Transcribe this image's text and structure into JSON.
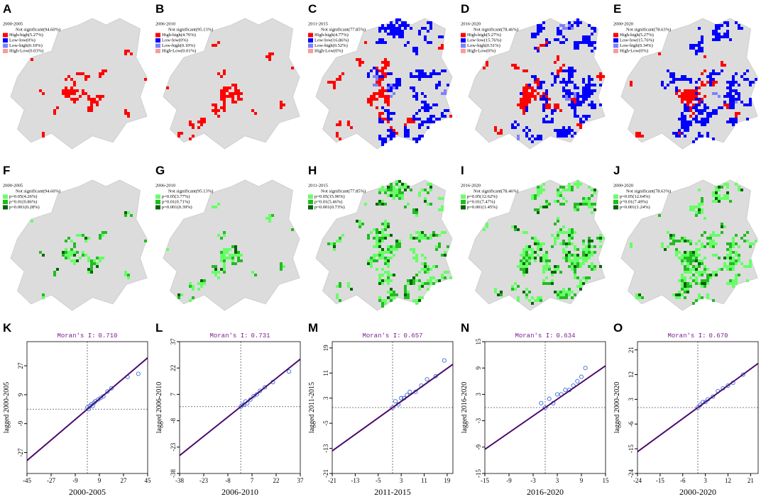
{
  "lisa_legend_colors": [
    "#ff0000",
    "#0000ff",
    "#8080ff",
    "#ff9999"
  ],
  "sig_legend_colors": [
    "#66ff66",
    "#22bb22",
    "#006400"
  ],
  "map_panels": [
    {
      "letter": "A",
      "period": "2000-2005",
      "legend": [
        "Not significant(94.60%)",
        "High-high(5.27%)",
        "Low-low(0%)",
        "Low-high(0.10%)",
        "High-Low(0.03%)"
      ]
    },
    {
      "letter": "B",
      "period": "2006-2010",
      "legend": [
        "Not significant(95.13%)",
        "High-high(4.76%)",
        "Low-low(0%)",
        "Low-high(0.10%)",
        "High-Low(0.01%)"
      ]
    },
    {
      "letter": "C",
      "period": "2011-2015",
      "legend": [
        "Not significant(77.85%)",
        "High-high(4.77%)",
        "Low-low(16.86%)",
        "Low-high(0.52%)",
        "High-Low(0%)"
      ]
    },
    {
      "letter": "D",
      "period": "2016-2020",
      "legend": [
        "Not significant(78.46%)",
        "High-high(5.27%)",
        "Low-low(15.76%)",
        "Low-high(0.51%)",
        "High-Low(0%)"
      ]
    },
    {
      "letter": "E",
      "period": "2000-2020",
      "legend": [
        "Not significant(78.63%)",
        "High-high(5.27%)",
        "Low-low(15.76%)",
        "Low-high(0.34%)",
        "High-Low(0%)"
      ]
    }
  ],
  "sig_panels": [
    {
      "letter": "F",
      "period": "2000-2005",
      "legend": [
        "Not significant(94.60%)",
        "p=0.05(4.26%)",
        "p=0.01(0.86%)",
        "p=0.001(0.28%)"
      ]
    },
    {
      "letter": "G",
      "period": "2006-2010",
      "legend": [
        "Not significant(95.13%)",
        "p=0.05(3.77%)",
        "p=0.01(0.71%)",
        "p=0.001(0.39%)"
      ]
    },
    {
      "letter": "H",
      "period": "2011-2015",
      "legend": [
        "Not significant(77.85%)",
        "p=0.05(15.96%)",
        "p=0.01(5.46%)",
        "p=0.001(0.73%)"
      ]
    },
    {
      "letter": "I",
      "period": "2016-2020",
      "legend": [
        "Not significant(78.46%)",
        "p=0.05(12.62%)",
        "p=0.01(7.47%)",
        "p=0.001(1.45%)"
      ]
    },
    {
      "letter": "J",
      "period": "2000-2020",
      "legend": [
        "Not significant(78.63%)",
        "p=0.05(12.64%)",
        "p=0.01(7.49%)",
        "p=0.001(1.24%)"
      ]
    }
  ],
  "chart_data": [
    {
      "type": "scatter",
      "letter": "K",
      "stat_name": "Moran's I:",
      "moran_i": {
        "value": 0.71,
        "label": "0.710"
      },
      "xlabel": "2000-2005",
      "ylabel": "lagged 2000-2005",
      "xlim": [
        -45,
        45
      ],
      "ylim": [
        -40,
        42
      ],
      "xticks": [
        -45,
        -27,
        -9,
        9,
        27,
        45
      ],
      "yticks": [
        -27,
        -9,
        9,
        27
      ],
      "color": "#3a6fd8",
      "line_color": "#4b0a6e",
      "x": [
        0,
        1,
        2,
        3,
        4,
        5,
        6,
        8,
        10,
        12,
        15,
        18,
        30,
        38
      ],
      "y": [
        1,
        0,
        2,
        3,
        2,
        4,
        5,
        6,
        7,
        8,
        11,
        13,
        20,
        22
      ]
    },
    {
      "type": "scatter",
      "letter": "L",
      "stat_name": "Moran's I:",
      "moran_i": {
        "value": 0.731,
        "label": "0.731"
      },
      "xlabel": "2006-2010",
      "ylabel": "lagged 2006-2010",
      "xlim": [
        -38,
        37
      ],
      "ylim": [
        -38,
        37
      ],
      "xticks": [
        -38,
        -23,
        -8,
        7,
        22,
        37
      ],
      "yticks": [
        -38,
        -23,
        -8,
        7,
        22,
        37
      ],
      "color": "#3a6fd8",
      "line_color": "#4b0a6e",
      "x": [
        0,
        1,
        2,
        3,
        4,
        6,
        8,
        10,
        12,
        15,
        20,
        30
      ],
      "y": [
        0,
        1,
        1,
        3,
        2,
        4,
        6,
        7,
        9,
        11,
        14,
        20
      ]
    },
    {
      "type": "scatter",
      "letter": "M",
      "stat_name": "Moran's I:",
      "moran_i": {
        "value": 0.657,
        "label": "0.657"
      },
      "xlabel": "2011-2015",
      "ylabel": "lagged 2011-2015",
      "xlim": [
        -21,
        21
      ],
      "ylim": [
        -21,
        21
      ],
      "xticks": [
        -21,
        -13,
        -5,
        3,
        11,
        19
      ],
      "yticks": [
        -21,
        -13,
        -5,
        3,
        11,
        19
      ],
      "color": "#3a6fd8",
      "line_color": "#4b0a6e",
      "x": [
        0,
        1,
        2,
        3,
        4,
        5,
        6,
        8,
        10,
        12,
        15,
        18
      ],
      "y": [
        0,
        2,
        1,
        3,
        3,
        4,
        5,
        5,
        7,
        9,
        10,
        15
      ]
    },
    {
      "type": "scatter",
      "letter": "N",
      "stat_name": "Moran's I:",
      "moran_i": {
        "value": 0.634,
        "label": "0.634"
      },
      "xlabel": "2016-2020",
      "ylabel": "lagged 2016-2020",
      "xlim": [
        -15,
        15
      ],
      "ylim": [
        -15,
        15
      ],
      "xticks": [
        -15,
        -9,
        -3,
        3,
        9,
        15
      ],
      "yticks": [
        -15,
        -9,
        -3,
        3,
        9,
        15
      ],
      "color": "#3a6fd8",
      "line_color": "#4b0a6e",
      "x": [
        -1,
        0,
        1,
        2,
        3,
        4,
        5,
        6,
        7,
        8,
        9,
        10
      ],
      "y": [
        1,
        0,
        2,
        1,
        3,
        3,
        4,
        4,
        5,
        6,
        7,
        9
      ]
    },
    {
      "type": "scatter",
      "letter": "O",
      "stat_name": "Moran's I:",
      "moran_i": {
        "value": 0.67,
        "label": "0.670"
      },
      "xlabel": "2000-2020",
      "ylabel": "lagged 2000-2020",
      "xlim": [
        -24,
        24
      ],
      "ylim": [
        -24,
        24
      ],
      "xticks": [
        -24,
        -15,
        -6,
        3,
        12,
        21
      ],
      "yticks": [
        -24,
        -15,
        -6,
        3,
        12,
        21
      ],
      "color": "#3a6fd8",
      "line_color": "#4b0a6e",
      "x": [
        0,
        1,
        2,
        3,
        4,
        6,
        8,
        10,
        12,
        14,
        18
      ],
      "y": [
        0,
        1,
        2,
        2,
        3,
        4,
        6,
        7,
        8,
        9,
        12
      ]
    }
  ]
}
